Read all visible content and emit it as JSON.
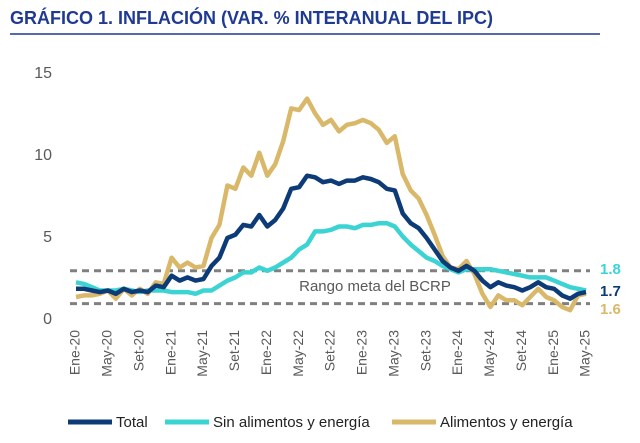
{
  "chart_data": {
    "type": "line",
    "title": "GRÁFICO 1. INFLACIÓN (VAR. % INTERANUAL DEL IPC)",
    "categories": [
      "Ene-20",
      null,
      null,
      null,
      "May-20",
      null,
      null,
      null,
      "Set-20",
      null,
      null,
      null,
      "Ene-21",
      null,
      null,
      null,
      "May-21",
      null,
      null,
      null,
      "Set-21",
      null,
      null,
      null,
      "Ene-22",
      null,
      null,
      null,
      "May-22",
      null,
      null,
      null,
      "Set-22",
      null,
      null,
      null,
      "Ene-23",
      null,
      null,
      null,
      "May-23",
      null,
      null,
      null,
      "Set-23",
      null,
      null,
      null,
      "Ene-24",
      null,
      null,
      null,
      "May-24",
      null,
      null,
      null,
      "Set-24",
      null,
      null,
      null,
      "Ene-25",
      null,
      null,
      null,
      "May-25"
    ],
    "series": [
      {
        "name": "Total",
        "color": "#0d3b78",
        "end_label": "1.7",
        "values": [
          1.9,
          1.9,
          1.8,
          1.7,
          1.8,
          1.6,
          1.9,
          1.7,
          1.8,
          1.7,
          2.1,
          2.0,
          2.7,
          2.4,
          2.6,
          2.4,
          2.5,
          3.3,
          3.8,
          5.0,
          5.2,
          5.8,
          5.7,
          6.4,
          5.7,
          6.1,
          6.8,
          8.0,
          8.1,
          8.8,
          8.7,
          8.4,
          8.5,
          8.3,
          8.5,
          8.5,
          8.7,
          8.6,
          8.4,
          8.0,
          7.9,
          6.5,
          5.9,
          5.6,
          5.0,
          4.3,
          3.6,
          3.2,
          3.0,
          3.3,
          3.0,
          2.4,
          2.0,
          2.3,
          2.1,
          2.0,
          1.8,
          2.0,
          2.3,
          2.0,
          1.9,
          1.5,
          1.3,
          1.6,
          1.7
        ]
      },
      {
        "name": "Sin alimentos y energía",
        "color": "#3cd3d3",
        "end_label": "1.8",
        "values": [
          2.3,
          2.2,
          2.0,
          1.8,
          1.8,
          1.8,
          1.9,
          1.8,
          1.7,
          1.8,
          1.8,
          1.8,
          1.7,
          1.7,
          1.7,
          1.6,
          1.8,
          1.8,
          2.1,
          2.4,
          2.6,
          2.9,
          2.9,
          3.2,
          3.0,
          3.2,
          3.5,
          3.8,
          4.3,
          4.6,
          5.4,
          5.4,
          5.5,
          5.7,
          5.7,
          5.6,
          5.8,
          5.8,
          5.9,
          5.9,
          5.7,
          5.1,
          4.6,
          4.2,
          3.8,
          3.6,
          3.3,
          3.1,
          2.9,
          3.1,
          3.1,
          3.1,
          3.1,
          3.0,
          2.9,
          2.8,
          2.7,
          2.6,
          2.6,
          2.6,
          2.4,
          2.2,
          2.0,
          1.9,
          1.8
        ]
      },
      {
        "name": "Alimentos y energía",
        "color": "#d9b86a",
        "end_label": "1.6",
        "values": [
          1.4,
          1.5,
          1.5,
          1.6,
          1.8,
          1.3,
          1.9,
          1.5,
          1.9,
          1.6,
          2.3,
          2.2,
          3.8,
          3.2,
          3.5,
          3.2,
          3.3,
          5.0,
          5.8,
          8.2,
          8.0,
          9.3,
          8.8,
          10.2,
          8.8,
          9.5,
          10.9,
          12.9,
          12.8,
          13.5,
          12.6,
          11.9,
          12.2,
          11.5,
          11.9,
          12.0,
          12.2,
          12.0,
          11.6,
          10.8,
          11.2,
          8.9,
          7.9,
          7.4,
          6.4,
          5.2,
          3.9,
          3.2,
          3.1,
          3.6,
          2.8,
          1.6,
          0.8,
          1.5,
          1.2,
          1.2,
          0.9,
          1.4,
          1.9,
          1.4,
          1.2,
          0.8,
          0.6,
          1.5,
          1.6
        ]
      }
    ],
    "target_range": [
      1,
      3
    ],
    "target_label": "Rango meta del BCRP",
    "ylim": [
      0,
      15
    ],
    "yticks": [
      0,
      5,
      10,
      15
    ]
  }
}
